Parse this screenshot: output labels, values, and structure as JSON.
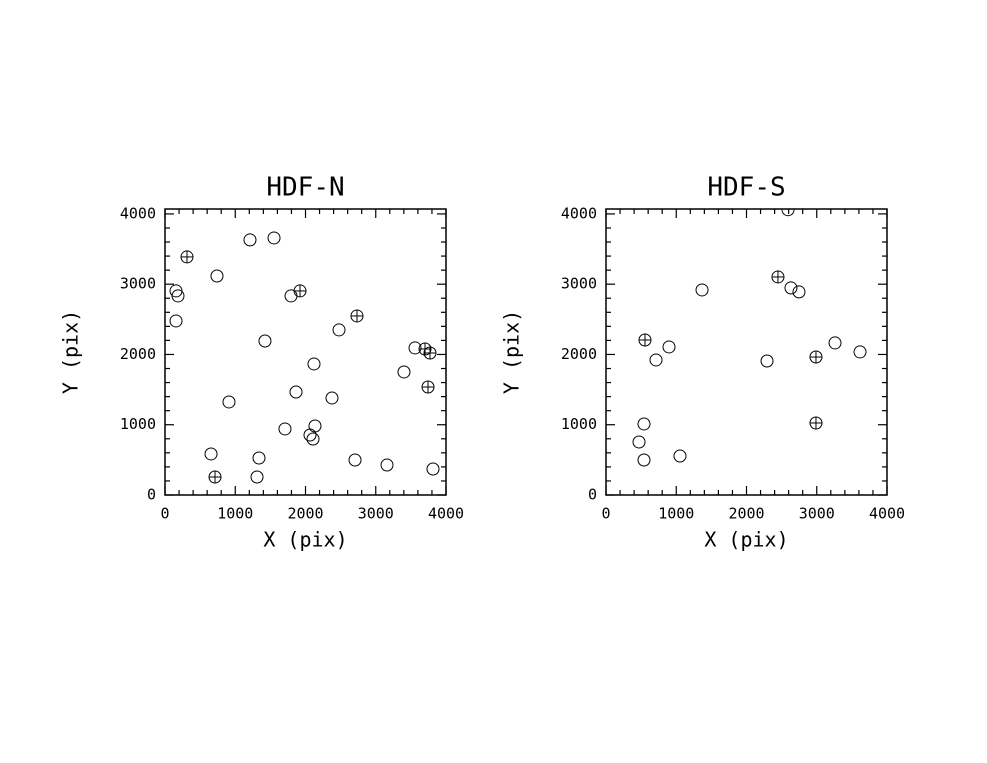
{
  "chart_data": [
    {
      "type": "scatter",
      "title": "HDF-N",
      "xlabel": "X (pix)",
      "ylabel": "Y (pix)",
      "xlim": [
        0,
        4000
      ],
      "ylim": [
        0,
        4070
      ],
      "xticks": [
        0,
        1000,
        2000,
        3000,
        4000
      ],
      "yticks": [
        0,
        1000,
        2000,
        3000,
        4000
      ],
      "xminorticks": [
        200,
        400,
        600,
        800,
        1200,
        1400,
        1600,
        1800,
        2200,
        2400,
        2600,
        2800,
        3200,
        3400,
        3600,
        3800
      ],
      "yminorticks": [
        200,
        400,
        600,
        800,
        1200,
        1400,
        1600,
        1800,
        2200,
        2400,
        2600,
        2800,
        3200,
        3400,
        3600,
        3800
      ],
      "series": [
        {
          "marker": "circle",
          "color": "#000000",
          "x": [
            157,
            185,
            157,
            740,
            1210,
            1552,
            1794,
            1423,
            2477,
            2121,
            1865,
            2377,
            911,
            1708,
            2064,
            2107,
            2135,
            655,
            1338,
            1310,
            2705,
            3160,
            3815,
            3402,
            3559
          ],
          "values": [
            2904,
            2833,
            2477,
            3117,
            3630,
            3658,
            2833,
            2192,
            2349,
            1865,
            1466,
            1381,
            1324,
            940,
            854,
            797,
            982,
            584,
            527,
            256,
            498,
            427,
            370,
            1751,
            2093
          ]
        },
        {
          "marker": "circle-plus",
          "color": "#000000",
          "x": [
            313,
            1922,
            2733,
            3701,
            3772,
            3744,
            712
          ],
          "values": [
            3388,
            2904,
            2548,
            2078,
            2021,
            1537,
            256
          ]
        }
      ]
    },
    {
      "type": "scatter",
      "title": "HDF-S",
      "xlabel": "X (pix)",
      "ylabel": "Y (pix)",
      "xlim": [
        0,
        4000
      ],
      "ylim": [
        0,
        4070
      ],
      "xticks": [
        0,
        1000,
        2000,
        3000,
        4000
      ],
      "yticks": [
        0,
        1000,
        2000,
        3000,
        4000
      ],
      "xminorticks": [
        200,
        400,
        600,
        800,
        1200,
        1400,
        1600,
        1800,
        2200,
        2400,
        2600,
        2800,
        3200,
        3400,
        3600,
        3800
      ],
      "yminorticks": [
        200,
        400,
        600,
        800,
        1200,
        1400,
        1600,
        1800,
        2200,
        2400,
        2600,
        2800,
        3200,
        3400,
        3600,
        3800
      ],
      "series": [
        {
          "marker": "circle",
          "color": "#000000",
          "x": [
            470,
            541,
            541,
            712,
            897,
            1053,
            1367,
            2292,
            2591,
            2633,
            2747,
            3260,
            3616
          ],
          "values": [
            754,
            1011,
            498,
            1922,
            2107,
            555,
            2918,
            1907,
            4060,
            2947,
            2890,
            2164,
            2036
          ]
        },
        {
          "marker": "circle-plus",
          "color": "#000000",
          "x": [
            555,
            2448,
            2989,
            2989
          ],
          "values": [
            2206,
            3103,
            1964,
            1025
          ]
        }
      ]
    }
  ]
}
